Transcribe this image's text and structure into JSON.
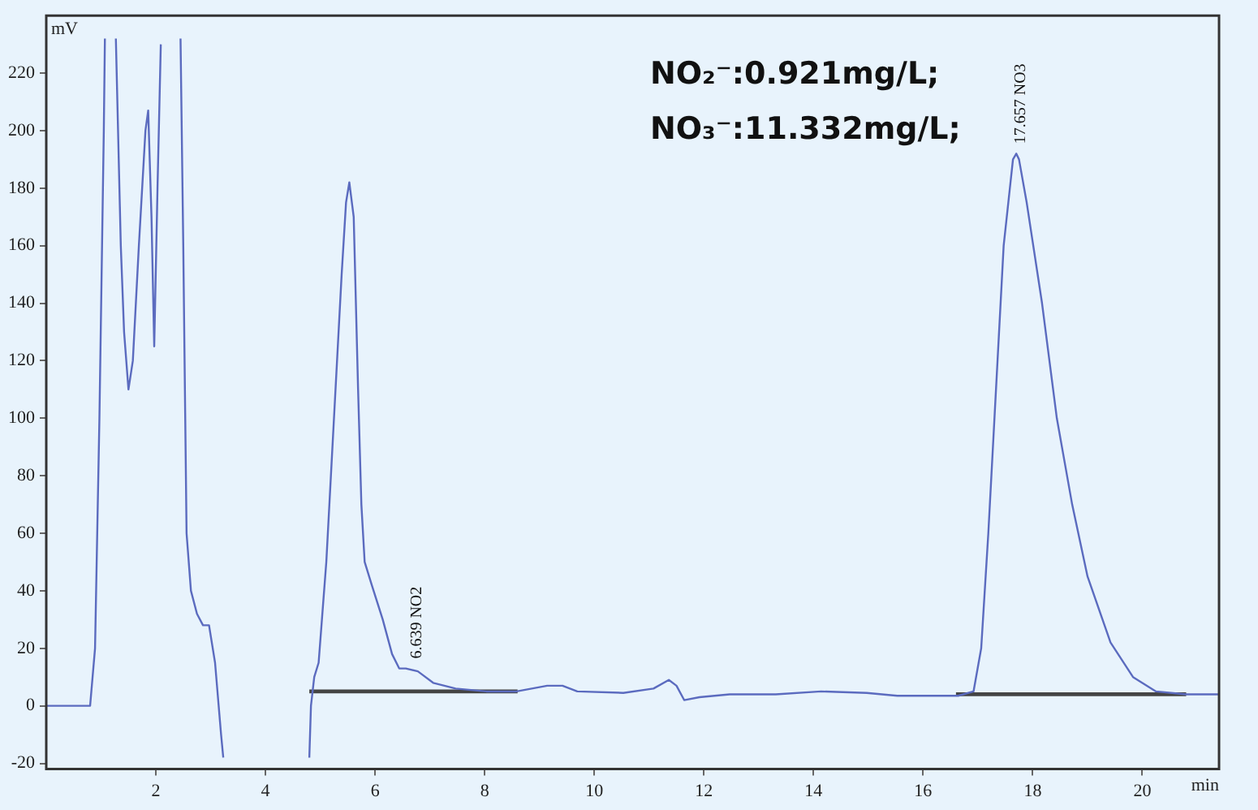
{
  "chart_data": {
    "type": "line",
    "xlabel": "min",
    "ylabel": "mV",
    "xlim": [
      0,
      21.4
    ],
    "ylim": [
      -22,
      240
    ],
    "xticks": [
      2,
      4,
      6,
      8,
      10,
      12,
      14,
      16,
      18,
      20
    ],
    "yticks": [
      -20,
      0,
      20,
      40,
      60,
      80,
      100,
      120,
      140,
      160,
      180,
      200,
      220
    ],
    "legend": false,
    "marker": "none",
    "line_style": "solid",
    "annotations": [
      "NO₂⁻:0.921mg/L;",
      "NO₃⁻:11.332mg/L;",
      {
        "text": "6.639 NO2",
        "x": 6.639,
        "y": 13
      },
      {
        "text": "17.657 NO3",
        "x": 17.657,
        "y": 192
      }
    ],
    "series": [
      {
        "color": "#5b6bbf",
        "x": [
          0,
          0.8,
          0.89,
          0.97,
          1.05,
          1.07,
          1.15,
          1.27,
          1.36,
          1.42,
          1.5,
          1.58,
          1.69,
          1.81,
          1.86,
          1.92,
          1.97,
          2.03,
          2.09,
          2.3,
          2.45,
          2.5,
          2.56,
          2.64,
          2.75,
          2.86,
          2.97,
          3.08,
          3.19,
          3.23,
          4.0,
          4.8,
          4.83,
          4.89,
          4.97,
          5.11,
          5.25,
          5.39,
          5.47,
          5.53,
          5.61,
          5.69,
          5.75,
          5.81,
          5.94,
          6.14,
          6.31,
          6.44,
          6.56,
          6.78,
          7.06,
          7.47,
          8.03,
          8.58,
          9.14,
          9.42,
          9.69,
          10.53,
          11.08,
          11.36,
          11.5,
          11.64,
          11.92,
          12.47,
          13.31,
          14.14,
          14.97,
          15.53,
          16.64,
          16.92,
          17.06,
          17.19,
          17.33,
          17.47,
          17.64,
          17.7,
          17.75,
          17.89,
          18.17,
          18.44,
          18.72,
          19.0,
          19.42,
          19.83,
          20.25,
          20.8,
          21.4
        ],
        "values": [
          0,
          0,
          20,
          100,
          200,
          232,
          null,
          232,
          160,
          130,
          110,
          120,
          160,
          200,
          207,
          170,
          125,
          180,
          230,
          null,
          232,
          160,
          60,
          40,
          32,
          28,
          28,
          15,
          -10,
          -18,
          null,
          -18,
          0,
          10,
          15,
          50,
          100,
          150,
          175,
          182,
          170,
          110,
          70,
          50,
          42,
          30,
          18,
          13,
          13,
          12,
          8,
          6,
          5,
          5,
          7,
          7,
          5,
          4.5,
          6,
          9,
          7,
          2,
          3,
          4,
          4,
          5,
          4.5,
          3.5,
          3.5,
          5,
          20,
          60,
          110,
          160,
          190,
          192,
          190,
          175,
          140,
          100,
          70,
          45,
          22,
          10,
          5,
          4,
          4
        ]
      },
      {
        "color": "#444444",
        "x": [
          4.8,
          8.6
        ],
        "values": [
          5,
          5
        ]
      },
      {
        "color": "#444444",
        "x": [
          16.6,
          20.8
        ],
        "values": [
          4,
          4
        ]
      }
    ]
  }
}
